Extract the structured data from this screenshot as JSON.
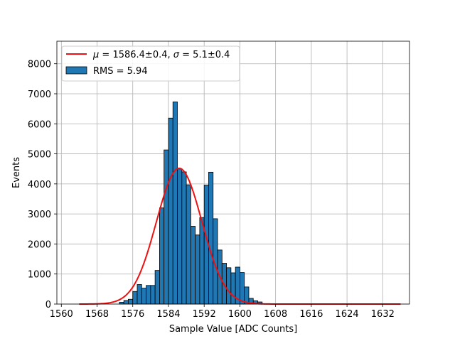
{
  "chart_data": {
    "type": "bar",
    "xlabel": "Sample Value [ADC Counts]",
    "ylabel": "Events",
    "xlim": [
      1559,
      1638
    ],
    "ylim": [
      0,
      8750
    ],
    "x_ticks": [
      1560,
      1568,
      1576,
      1584,
      1592,
      1600,
      1608,
      1616,
      1624,
      1632
    ],
    "y_ticks": [
      0,
      1000,
      2000,
      3000,
      4000,
      5000,
      6000,
      7000,
      8000
    ],
    "grid": true,
    "legend_position": "top-left",
    "bin_width": 1,
    "histogram": {
      "name": "RMS = 5.94",
      "color": "#1f77b4",
      "bins": [
        1573,
        1574,
        1575,
        1576,
        1577,
        1578,
        1579,
        1580,
        1581,
        1582,
        1583,
        1584,
        1585,
        1586,
        1587,
        1588,
        1589,
        1590,
        1591,
        1592,
        1593,
        1594,
        1595,
        1596,
        1597,
        1598,
        1599,
        1600,
        1601,
        1602,
        1603,
        1604
      ],
      "values": [
        60,
        120,
        160,
        420,
        650,
        530,
        620,
        620,
        1120,
        3200,
        5130,
        6190,
        6730,
        4500,
        4400,
        3970,
        2590,
        2300,
        2880,
        3960,
        4390,
        2840,
        1800,
        1360,
        1210,
        1040,
        1230,
        1050,
        570,
        190,
        110,
        70
      ]
    },
    "fit": {
      "name_mu_symbol": "μ",
      "name_mu_value": " = 1586.4±0.4, ",
      "name_sigma_symbol": "σ",
      "name_sigma_value": " = 5.1±0.4",
      "color": "#ee1111",
      "type": "gaussian",
      "mean": 1586.4,
      "sigma": 5.1,
      "amplitude": 4520,
      "x_range": [
        1564,
        1636
      ]
    }
  }
}
